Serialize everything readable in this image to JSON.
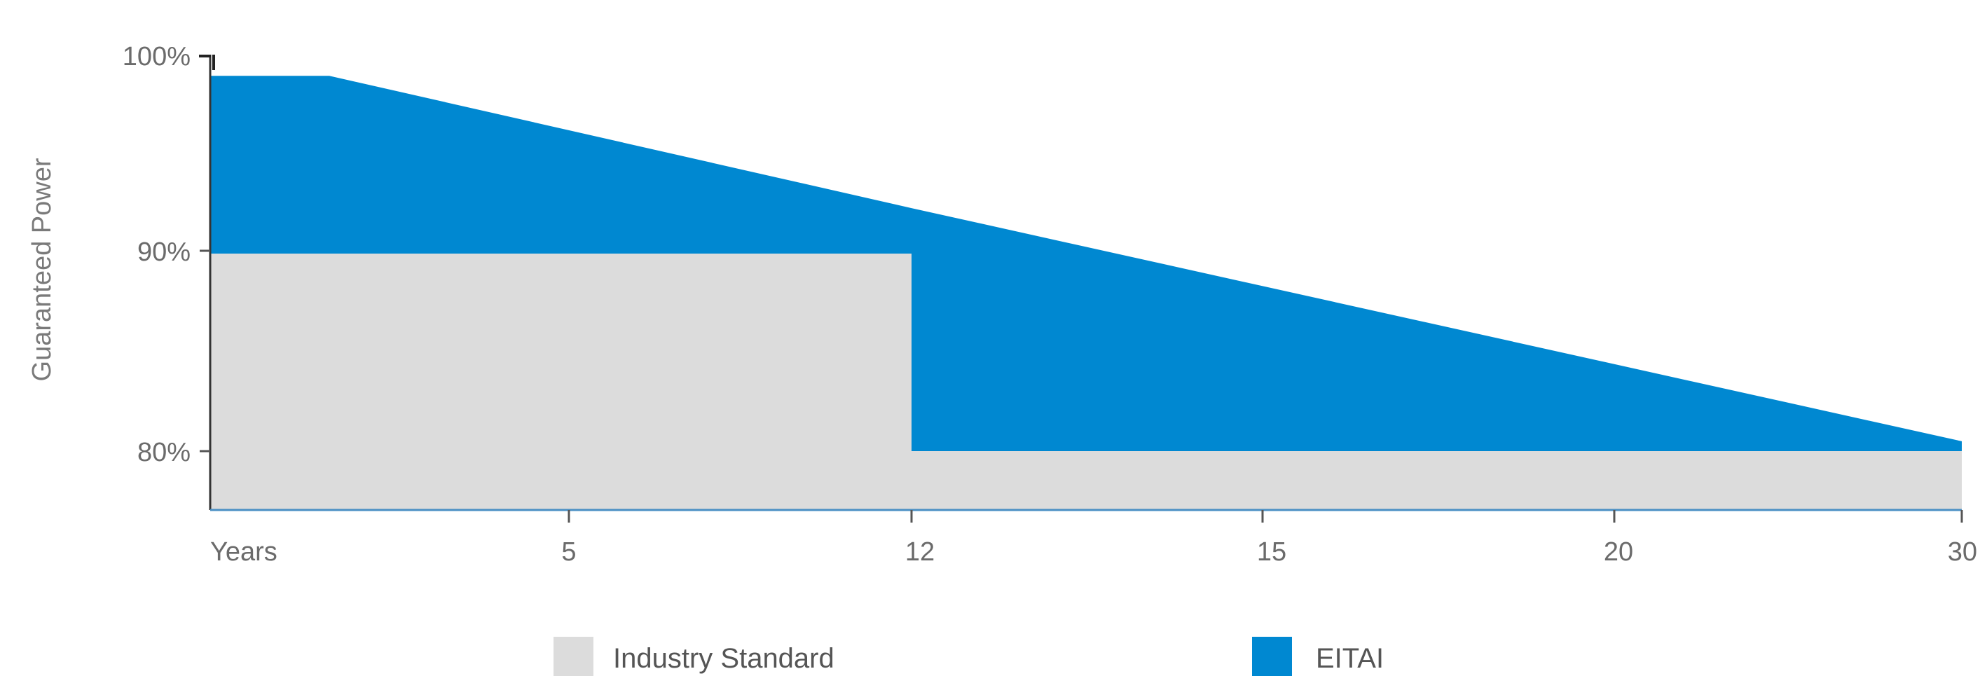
{
  "chart_data": {
    "type": "area",
    "ylabel": "Guaranteed Power",
    "y_ticks": [
      {
        "value": 100,
        "label": "100%"
      },
      {
        "value": 90,
        "label": "90%"
      },
      {
        "value": 80,
        "label": "80%"
      }
    ],
    "x_ticks": [
      {
        "label": "Years"
      },
      {
        "label": "5"
      },
      {
        "label": "12"
      },
      {
        "label": "15"
      },
      {
        "label": "20"
      },
      {
        "label": "30"
      }
    ],
    "grid": false,
    "legend_position": "bottom",
    "series": [
      {
        "name": "Industry Standard",
        "color": "#dcdcdc",
        "points": [
          {
            "x": "Years",
            "y": 90
          },
          {
            "x": "12",
            "y": 90
          },
          {
            "x": "12",
            "y": 80
          },
          {
            "x": "30",
            "y": 80
          }
        ]
      },
      {
        "name": "EITAI",
        "color": "#0088d1",
        "points": [
          {
            "x": "Years",
            "y": 99
          },
          {
            "x": "Years+1",
            "y": 99
          },
          {
            "x": "12",
            "y": 92.3
          },
          {
            "x": "30",
            "y": 80.5
          }
        ]
      }
    ]
  }
}
